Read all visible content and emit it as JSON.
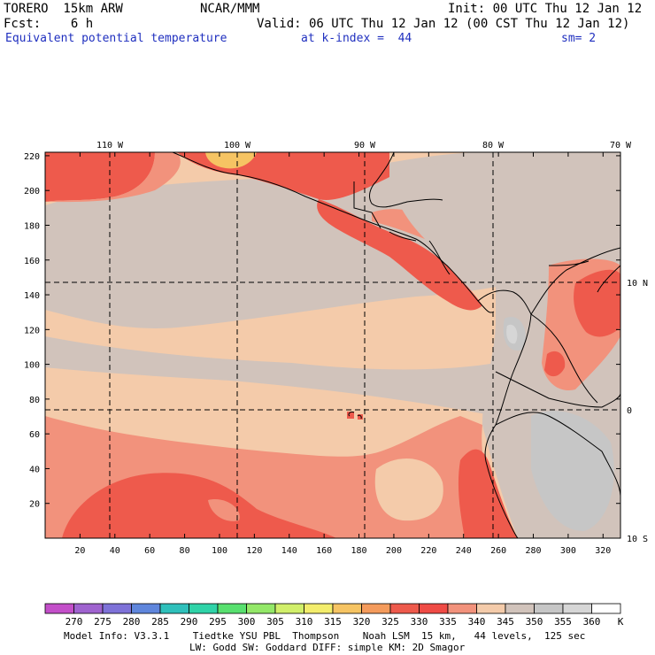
{
  "header": {
    "model": "TORERO  15km ARW",
    "org": "NCAR/MMM",
    "init": "Init: 00 UTC Thu 12 Jan 12",
    "fcst": "Fcst:    6 h",
    "valid": "Valid: 06 UTC Thu 12 Jan 12 (00 CST Thu 12 Jan 12)",
    "field": "Equivalent potential temperature",
    "level": "at k-index =  44",
    "smooth": "sm= 2"
  },
  "map": {
    "x_ticks": [
      "20",
      "40",
      "60",
      "80",
      "100",
      "120",
      "140",
      "160",
      "180",
      "200",
      "220",
      "240",
      "260",
      "280",
      "300",
      "320"
    ],
    "y_ticks": [
      "20",
      "40",
      "60",
      "80",
      "100",
      "120",
      "140",
      "160",
      "180",
      "200",
      "220"
    ],
    "lon_labels": [
      "110 W",
      "100 W",
      "90 W",
      "80 W",
      "70 W"
    ],
    "lat_labels": [
      "10 N",
      "0",
      "10 S"
    ]
  },
  "colorbar": {
    "values": [
      "270",
      "275",
      "280",
      "285",
      "290",
      "295",
      "300",
      "305",
      "310",
      "315",
      "320",
      "325",
      "330",
      "335",
      "340",
      "345",
      "350",
      "355",
      "360"
    ],
    "unit": "K",
    "colors": [
      "#c34fc9",
      "#9f63cf",
      "#7e72d8",
      "#5f86dc",
      "#2fc0bb",
      "#2fd3a8",
      "#58e06f",
      "#93e868",
      "#d1ef6a",
      "#f3ed6c",
      "#f6c463",
      "#f49b5c",
      "#ee5a4c",
      "#ef4b45",
      "#f2927c",
      "#f4cbaa",
      "#d1c3bb",
      "#c6c6c6",
      "#d6d6d6",
      "#ffffff"
    ]
  },
  "field_colors": {
    "hot": "#ee5a4c",
    "warm": "#f2927c",
    "mild": "#f4cbaa",
    "cool": "#d1c3bb",
    "cold": "#c6c6c6",
    "peak": "#f6c463"
  },
  "footer": {
    "line1": "Model Info: V3.3.1    Tiedtke YSU PBL  Thompson    Noah LSM  15 km,   44 levels,  125 sec",
    "line2": "LW: Godd SW: Goddard DIFF: simple KM: 2D Smagor"
  }
}
